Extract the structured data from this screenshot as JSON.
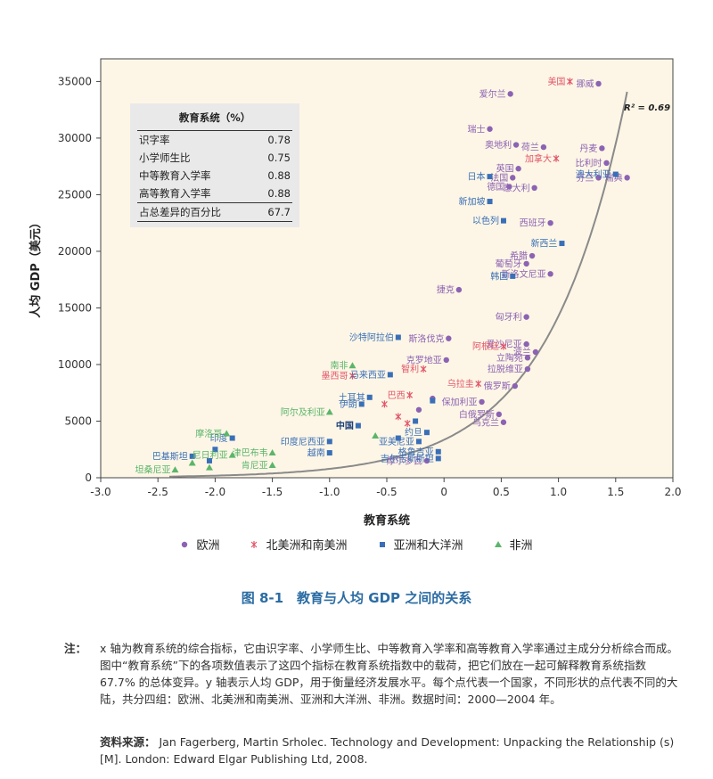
{
  "chart_data": {
    "type": "scatter",
    "xlabel": "教育系统",
    "ylabel": "人均 GDP（美元）",
    "xlim": [
      -3.0,
      2.0
    ],
    "ylim": [
      0,
      37000
    ],
    "xticks": [
      "-3.0",
      "-2.5",
      "-2.0",
      "-1.5",
      "-1.0",
      "-0.5",
      "0",
      "0.5",
      "1.0",
      "1.5",
      "2.0"
    ],
    "yticks": [
      "0",
      "5000",
      "10000",
      "15000",
      "20000",
      "25000",
      "30000",
      "35000"
    ],
    "r_squared_label": "R² = 0.69",
    "colors": {
      "europe": "#8c63b3",
      "americas": "#e2566a",
      "asia": "#3a6fb7",
      "africa": "#5cb56a",
      "background": "#fdf6e6",
      "curve": "#888888"
    },
    "series": [
      {
        "name": "欧洲",
        "marker": "circle",
        "points": [
          {
            "x": 1.35,
            "y": 34800,
            "label": "挪威"
          },
          {
            "x": 0.58,
            "y": 33900,
            "label": "爱尔兰"
          },
          {
            "x": 0.4,
            "y": 30800,
            "label": "瑞士"
          },
          {
            "x": 0.63,
            "y": 29400,
            "label": "奥地利"
          },
          {
            "x": 0.87,
            "y": 29200,
            "label": "荷兰"
          },
          {
            "x": 1.38,
            "y": 29100,
            "label": "丹麦"
          },
          {
            "x": 0.65,
            "y": 27300,
            "label": "英国"
          },
          {
            "x": 1.42,
            "y": 27800,
            "label": "比利时"
          },
          {
            "x": 0.6,
            "y": 26500,
            "label": "法国"
          },
          {
            "x": 1.6,
            "y": 26500,
            "label": "瑞典"
          },
          {
            "x": 0.57,
            "y": 25700,
            "label": "德国"
          },
          {
            "x": 0.79,
            "y": 25600,
            "label": "意大利"
          },
          {
            "x": 1.35,
            "y": 26500,
            "label": "芬兰"
          },
          {
            "x": 0.93,
            "y": 22500,
            "label": "西班牙"
          },
          {
            "x": 0.77,
            "y": 19600,
            "label": "希腊"
          },
          {
            "x": 0.72,
            "y": 18900,
            "label": "葡萄牙"
          },
          {
            "x": 0.93,
            "y": 18000,
            "label": "斯洛文尼亚"
          },
          {
            "x": 0.13,
            "y": 16600,
            "label": "捷克"
          },
          {
            "x": 0.72,
            "y": 14200,
            "label": "匈牙利"
          },
          {
            "x": 0.04,
            "y": 12300,
            "label": "斯洛伐克"
          },
          {
            "x": 0.8,
            "y": 11100,
            "label": "波兰"
          },
          {
            "x": 0.73,
            "y": 10600,
            "label": "立陶宛"
          },
          {
            "x": 0.02,
            "y": 10400,
            "label": "克罗地亚"
          },
          {
            "x": 0.72,
            "y": 11800,
            "label": "爱沙尼亚"
          },
          {
            "x": 0.73,
            "y": 9600,
            "label": "拉脱维亚"
          },
          {
            "x": 0.62,
            "y": 8100,
            "label": "俄罗斯"
          },
          {
            "x": 0.33,
            "y": 6700,
            "label": "保加利亚"
          },
          {
            "x": 0.48,
            "y": 5600,
            "label": "白俄罗斯"
          },
          {
            "x": 0.52,
            "y": 4900,
            "label": "乌克兰"
          },
          {
            "x": -0.1,
            "y": 7000,
            "label": ""
          },
          {
            "x": -0.22,
            "y": 6000,
            "label": ""
          },
          {
            "x": -0.15,
            "y": 1500,
            "label": "摩尔多瓦"
          }
        ]
      },
      {
        "name": "北美洲和南美洲",
        "marker": "cross",
        "points": [
          {
            "x": 1.1,
            "y": 35000,
            "label": "美国"
          },
          {
            "x": 0.98,
            "y": 28200,
            "label": "加拿大"
          },
          {
            "x": 0.52,
            "y": 11600,
            "label": "阿根廷"
          },
          {
            "x": -0.18,
            "y": 9600,
            "label": "智利"
          },
          {
            "x": -0.8,
            "y": 9000,
            "label": "墨西哥"
          },
          {
            "x": 0.3,
            "y": 8300,
            "label": "乌拉圭"
          },
          {
            "x": -0.3,
            "y": 7300,
            "label": "巴西"
          },
          {
            "x": -0.52,
            "y": 6500,
            "label": ""
          },
          {
            "x": -0.4,
            "y": 5400,
            "label": ""
          },
          {
            "x": -0.32,
            "y": 4800,
            "label": ""
          }
        ]
      },
      {
        "name": "亚洲和大洋洲",
        "marker": "square",
        "points": [
          {
            "x": 1.5,
            "y": 26800,
            "label": "澳大利亚"
          },
          {
            "x": 0.4,
            "y": 26600,
            "label": "日本"
          },
          {
            "x": 0.4,
            "y": 24400,
            "label": "新加坡"
          },
          {
            "x": 0.52,
            "y": 22700,
            "label": "以色列"
          },
          {
            "x": 1.03,
            "y": 20700,
            "label": "新西兰"
          },
          {
            "x": 0.6,
            "y": 17800,
            "label": "韩国"
          },
          {
            "x": -0.4,
            "y": 12400,
            "label": "沙特阿拉伯"
          },
          {
            "x": -0.47,
            "y": 9100,
            "label": "马来西亚"
          },
          {
            "x": -0.65,
            "y": 7100,
            "label": "土耳其"
          },
          {
            "x": -0.72,
            "y": 6500,
            "label": "伊朗"
          },
          {
            "x": -0.75,
            "y": 4600,
            "label": "中国"
          },
          {
            "x": -0.15,
            "y": 4000,
            "label": "约旦"
          },
          {
            "x": -0.4,
            "y": 3500,
            "label": ""
          },
          {
            "x": -1.0,
            "y": 3200,
            "label": "印度尼西亚"
          },
          {
            "x": -0.22,
            "y": 3200,
            "label": "亚美尼亚"
          },
          {
            "x": -0.05,
            "y": 2300,
            "label": "格鲁吉亚"
          },
          {
            "x": -1.0,
            "y": 2200,
            "label": "越南"
          },
          {
            "x": -0.05,
            "y": 1700,
            "label": "吉尔吉斯斯坦"
          },
          {
            "x": -1.85,
            "y": 3500,
            "label": "印度"
          },
          {
            "x": -2.0,
            "y": 2500,
            "label": ""
          },
          {
            "x": -2.2,
            "y": 1900,
            "label": "巴基斯坦"
          },
          {
            "x": -2.05,
            "y": 1500,
            "label": ""
          },
          {
            "x": -0.1,
            "y": 6800,
            "label": ""
          },
          {
            "x": -0.25,
            "y": 5000,
            "label": ""
          }
        ]
      },
      {
        "name": "非洲",
        "marker": "triangle",
        "points": [
          {
            "x": -0.8,
            "y": 9900,
            "label": "南非"
          },
          {
            "x": -1.0,
            "y": 5800,
            "label": "阿尔及利亚"
          },
          {
            "x": -1.9,
            "y": 3900,
            "label": "摩洛哥"
          },
          {
            "x": -0.6,
            "y": 3700,
            "label": ""
          },
          {
            "x": -1.5,
            "y": 2200,
            "label": "津巴布韦"
          },
          {
            "x": -1.85,
            "y": 2000,
            "label": "尼日利亚"
          },
          {
            "x": -2.2,
            "y": 1300,
            "label": ""
          },
          {
            "x": -2.05,
            "y": 900,
            "label": ""
          },
          {
            "x": -1.5,
            "y": 1100,
            "label": "肯尼亚"
          },
          {
            "x": -2.35,
            "y": 700,
            "label": "坦桑尼亚"
          }
        ]
      }
    ]
  },
  "table": {
    "title": "教育系统（%）",
    "rows": [
      {
        "label": "识字率",
        "value": "0.78"
      },
      {
        "label": "小学师生比",
        "value": "0.75"
      },
      {
        "label": "中等教育入学率",
        "value": "0.88"
      },
      {
        "label": "高等教育入学率",
        "value": "0.88"
      }
    ],
    "total_label": "占总差异的百分比",
    "total_value": "67.7"
  },
  "figure_title": "图 8-1　教育与人均 GDP 之间的关系",
  "note_label": "注：",
  "note_text": "x 轴为教育系统的综合指标，它由识字率、小学师生比、中等教育入学率和高等教育入学率通过主成分分析综合而成。图中“教育系统”下的各项数值表示了这四个指标在教育系统指数中的载荷，把它们放在一起可解释教育系统指数 67.7% 的总体变异。y 轴表示人均 GDP，用于衡量经济发展水平。每个点代表一个国家，不同形状的点代表不同的大陆，共分四组：欧洲、北美洲和南美洲、亚洲和大洋洲、非洲。数据时间：2000—2004 年。",
  "source_label": "资料来源：",
  "source_text": "Jan Fagerberg, Martin Srholec. Technology and Development: Unpacking the Relationship (s) [M]. London: Edward Elgar Publishing Ltd, 2008."
}
